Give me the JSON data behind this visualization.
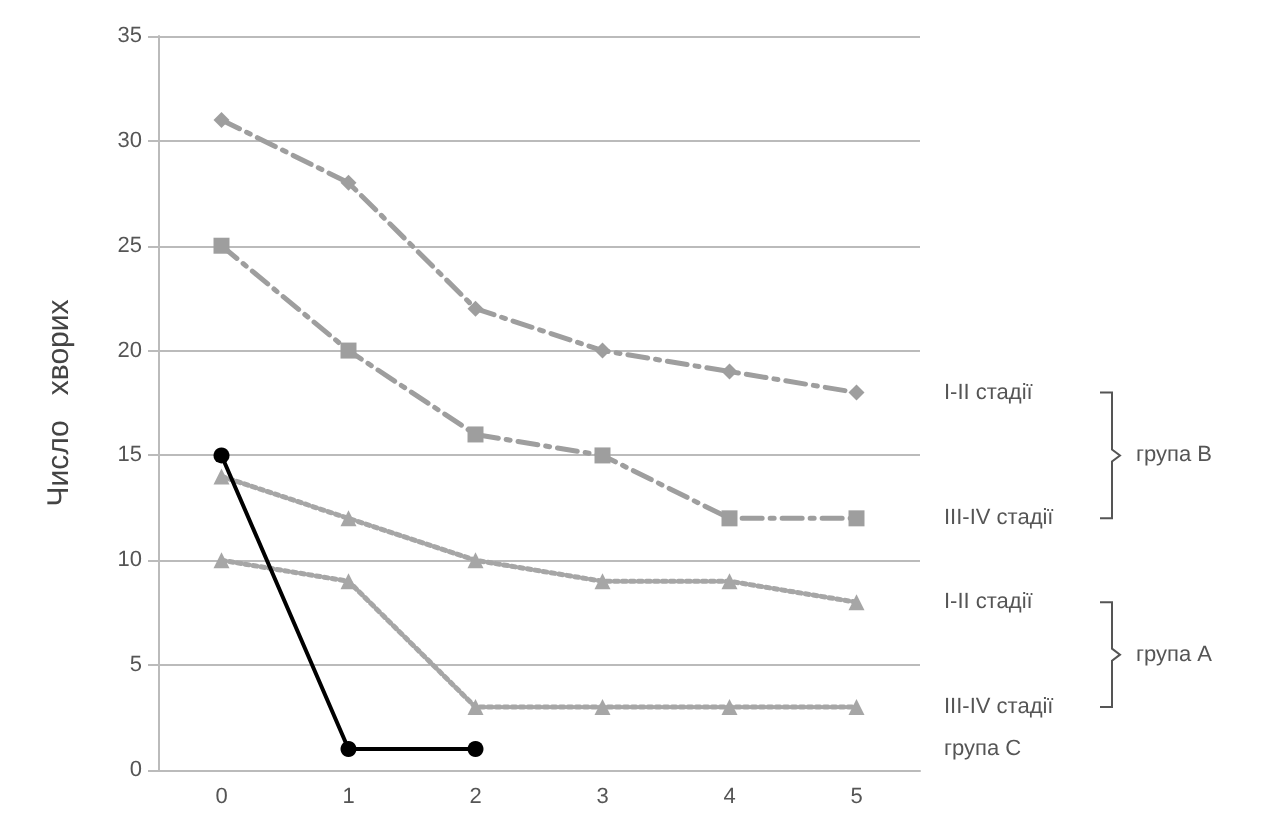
{
  "chart_data": {
    "type": "line",
    "ylabel": "Число   хворих",
    "categories": [
      "0",
      "1",
      "2",
      "3",
      "4",
      "5"
    ],
    "series": [
      {
        "name": "I-II стадії",
        "color": "#9e9e9e",
        "marker": "diamond",
        "line_style": "dashed",
        "values": [
          31,
          28,
          22,
          20,
          19,
          18
        ]
      },
      {
        "name": "III-IV стадії",
        "color": "#9e9e9e",
        "marker": "square",
        "line_style": "dashed",
        "values": [
          25,
          20,
          16,
          15,
          12,
          12
        ]
      },
      {
        "name": "I-II стадії",
        "color": "#a6a6a6",
        "marker": "triangle",
        "line_style": "dotted",
        "values": [
          14,
          12,
          10,
          9,
          9,
          8
        ]
      },
      {
        "name": "III-IV стадії",
        "color": "#a6a6a6",
        "marker": "triangle",
        "line_style": "dotted",
        "values": [
          10,
          9,
          3,
          3,
          3,
          3
        ]
      },
      {
        "name": "група C",
        "color": "#000000",
        "marker": "circle",
        "line_style": "solid",
        "values": [
          15,
          1,
          1,
          null,
          null,
          null
        ]
      }
    ],
    "annotations": [
      "група B",
      "група A"
    ],
    "ylim": [
      0,
      35
    ],
    "yticks": [
      0,
      5,
      10,
      15,
      20,
      25,
      30,
      35
    ],
    "grid": "y"
  }
}
